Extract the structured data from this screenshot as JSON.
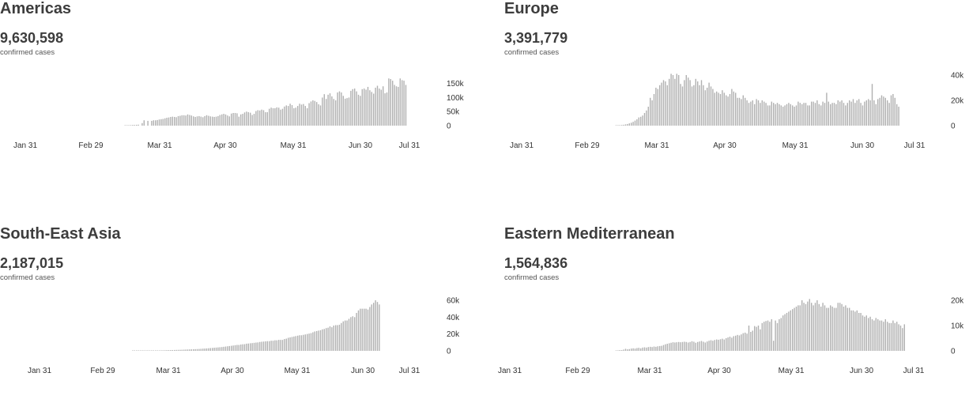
{
  "panels": [
    {
      "title": "Americas",
      "total": "9,630,598",
      "subtitle": "confirmed cases"
    },
    {
      "title": "Europe",
      "total": "3,391,779",
      "subtitle": "confirmed cases"
    },
    {
      "title": "South-East Asia",
      "total": "2,187,015",
      "subtitle": "confirmed cases"
    },
    {
      "title": "Eastern Mediterranean",
      "total": "1,564,836",
      "subtitle": "confirmed cases"
    }
  ],
  "colors": {
    "bar": "#b0b0b0",
    "text": "#3d3d3d"
  },
  "chart_data": [
    {
      "type": "bar",
      "title": "Americas",
      "x_start": "2020-01-11",
      "x_end": "2020-08-14",
      "x_ticks": [
        "Jan 31",
        "Feb 29",
        "Mar 31",
        "Apr 30",
        "May 31",
        "Jun 30",
        "Jul 31"
      ],
      "y_ticks": [
        "0",
        "50k",
        "100k",
        "150k"
      ],
      "y_tick_values": [
        0,
        50000,
        100000,
        150000
      ],
      "ylim": [
        0,
        180000
      ],
      "values": [
        0,
        0,
        0,
        0,
        0,
        0,
        0,
        0,
        0,
        0,
        0,
        0,
        0,
        0,
        0,
        0,
        0,
        0,
        0,
        0,
        0,
        0,
        0,
        0,
        0,
        0,
        0,
        0,
        0,
        0,
        0,
        0,
        0,
        0,
        0,
        0,
        0,
        0,
        0,
        0,
        0,
        0,
        0,
        0,
        0,
        0,
        0,
        0,
        0,
        0,
        0,
        0,
        0,
        0,
        1000,
        1000,
        1500,
        2000,
        2500,
        2500,
        3000,
        3500,
        0,
        9000,
        19000,
        0,
        17000,
        0,
        17000,
        19000,
        19000,
        20000,
        22000,
        23000,
        24000,
        26000,
        28000,
        29000,
        31000,
        32000,
        31000,
        30000,
        34000,
        35000,
        37000,
        37000,
        36000,
        40000,
        38000,
        36000,
        33000,
        31000,
        33000,
        34000,
        32000,
        30000,
        34000,
        37000,
        35000,
        33000,
        32000,
        31000,
        32000,
        34000,
        38000,
        40000,
        42000,
        40000,
        36000,
        33000,
        43000,
        45000,
        45000,
        44000,
        32000,
        40000,
        42000,
        47000,
        50000,
        48000,
        46000,
        38000,
        42000,
        52000,
        55000,
        54000,
        57000,
        55000,
        48000,
        48000,
        60000,
        64000,
        62000,
        62000,
        65000,
        64000,
        57000,
        60000,
        68000,
        72000,
        70000,
        78000,
        73000,
        62000,
        64000,
        70000,
        78000,
        75000,
        77000,
        70000,
        62000,
        80000,
        86000,
        90000,
        88000,
        84000,
        76000,
        72000,
        100000,
        112000,
        95000,
        110000,
        115000,
        104000,
        95000,
        90000,
        118000,
        122000,
        118000,
        106000,
        96000,
        98000,
        100000,
        124000,
        130000,
        132000,
        122000,
        110000,
        106000,
        130000,
        132000,
        128000,
        138000,
        126000,
        120000,
        114000,
        135000,
        142000,
        132000,
        128000,
        140000,
        115000,
        118000,
        168000,
        166000,
        160000,
        145000,
        140000,
        138000,
        168000,
        162000,
        160000,
        145000
      ],
      "xlabel": "",
      "ylabel": ""
    },
    {
      "type": "bar",
      "title": "Europe",
      "x_start": "2020-01-11",
      "x_end": "2020-08-14",
      "x_ticks": [
        "Jan 31",
        "Feb 29",
        "Mar 31",
        "Apr 30",
        "May 31",
        "Jun 30",
        "Jul 31"
      ],
      "y_ticks": [
        "0",
        "20k",
        "40k"
      ],
      "y_tick_values": [
        0,
        20000,
        40000
      ],
      "ylim": [
        0,
        40000
      ],
      "values": [
        0,
        0,
        0,
        0,
        0,
        0,
        0,
        0,
        0,
        0,
        0,
        0,
        0,
        0,
        0,
        0,
        0,
        0,
        0,
        0,
        0,
        0,
        0,
        0,
        0,
        0,
        0,
        0,
        0,
        0,
        0,
        0,
        0,
        0,
        0,
        0,
        0,
        0,
        0,
        0,
        0,
        0,
        0,
        0,
        0,
        0,
        0,
        200,
        300,
        400,
        500,
        700,
        1000,
        1300,
        1800,
        2300,
        3000,
        4000,
        5000,
        6500,
        7000,
        8000,
        10000,
        12000,
        15000,
        22000,
        20000,
        25000,
        30000,
        29000,
        32000,
        34000,
        36000,
        35000,
        32000,
        37000,
        41000,
        40000,
        37000,
        41000,
        40000,
        33000,
        31000,
        36000,
        40000,
        38000,
        36000,
        31000,
        32000,
        37000,
        35000,
        32000,
        36000,
        32000,
        28000,
        30000,
        34000,
        31000,
        29000,
        26000,
        27000,
        26000,
        25000,
        28000,
        26000,
        24000,
        23000,
        25000,
        29000,
        27000,
        26000,
        22000,
        22000,
        21000,
        24000,
        22000,
        20000,
        18000,
        19000,
        20000,
        17000,
        21000,
        20000,
        18000,
        20000,
        19000,
        18000,
        16000,
        16000,
        19000,
        18000,
        17000,
        18000,
        17000,
        16000,
        15000,
        16000,
        17000,
        18000,
        17000,
        16000,
        15000,
        16000,
        19000,
        18000,
        17000,
        18000,
        18000,
        16000,
        16000,
        19000,
        19000,
        18000,
        20000,
        17000,
        16000,
        19000,
        18000,
        26000,
        19000,
        17000,
        18000,
        18000,
        17000,
        20000,
        19000,
        20000,
        18000,
        16000,
        18000,
        20000,
        19000,
        21000,
        18000,
        20000,
        21000,
        18000,
        16000,
        19000,
        20000,
        21000,
        20000,
        33000,
        20000,
        17000,
        21000,
        22000,
        24000,
        23000,
        22000,
        20000,
        18000,
        24000,
        25000,
        22000,
        17000,
        15000
      ]
    },
    {
      "type": "bar",
      "title": "South-East Asia",
      "x_start": "2020-01-11",
      "x_end": "2020-08-14",
      "x_ticks": [
        "Jan 31",
        "Feb 29",
        "Mar 31",
        "Apr 30",
        "May 31",
        "Jun 30",
        "Jul 31"
      ],
      "y_ticks": [
        "0",
        "20k",
        "40k",
        "60k"
      ],
      "y_tick_values": [
        0,
        20000,
        40000,
        60000
      ],
      "ylim": [
        0,
        60000
      ],
      "values": [
        0,
        0,
        0,
        0,
        0,
        0,
        0,
        0,
        0,
        0,
        0,
        0,
        0,
        0,
        0,
        0,
        0,
        0,
        0,
        0,
        0,
        0,
        0,
        0,
        0,
        0,
        0,
        0,
        0,
        0,
        0,
        0,
        0,
        0,
        0,
        0,
        0,
        0,
        0,
        0,
        0,
        0,
        0,
        0,
        0,
        0,
        0,
        0,
        0,
        0,
        0,
        0,
        0,
        0,
        0,
        0,
        0,
        0,
        50,
        60,
        80,
        100,
        120,
        150,
        180,
        200,
        250,
        300,
        350,
        400,
        450,
        500,
        550,
        600,
        650,
        700,
        800,
        850,
        900,
        950,
        1000,
        1100,
        1150,
        1200,
        1300,
        1400,
        1500,
        1600,
        1700,
        1800,
        1900,
        2000,
        2100,
        2200,
        2400,
        2600,
        2700,
        2900,
        3100,
        3300,
        3500,
        3700,
        3900,
        4100,
        4300,
        4500,
        4800,
        5100,
        5400,
        5700,
        6000,
        6300,
        6700,
        7000,
        7000,
        7500,
        7800,
        7900,
        8500,
        8700,
        9000,
        9200,
        9500,
        9800,
        10000,
        10500,
        10800,
        11000,
        11300,
        11500,
        11500,
        12000,
        12000,
        12500,
        12500,
        13000,
        13000,
        13000,
        14000,
        14500,
        15500,
        16000,
        16500,
        17000,
        17500,
        18000,
        18500,
        18500,
        19000,
        19500,
        20000,
        20500,
        21000,
        22000,
        23000,
        23500,
        24000,
        24500,
        25500,
        26000,
        27000,
        27500,
        29000,
        28000,
        30000,
        30500,
        30500,
        31000,
        33000,
        35000,
        36000,
        36000,
        38000,
        40000,
        41000,
        40000,
        45000,
        48000,
        50000,
        50000,
        50000,
        50000,
        49000,
        52000,
        55000,
        57000,
        60000,
        58000,
        55000
      ]
    },
    {
      "type": "bar",
      "title": "Eastern Mediterranean",
      "x_start": "2020-01-11",
      "x_end": "2020-08-14",
      "x_ticks": [
        "Jan 31",
        "Feb 29",
        "Mar 31",
        "Apr 30",
        "May 31",
        "Jun 30",
        "Jul 31"
      ],
      "y_ticks": [
        "0",
        "10k",
        "20k"
      ],
      "y_tick_values": [
        0,
        10000,
        20000
      ],
      "ylim": [
        0,
        20000
      ],
      "values": [
        0,
        0,
        0,
        0,
        0,
        0,
        0,
        0,
        0,
        0,
        0,
        0,
        0,
        0,
        0,
        0,
        0,
        0,
        0,
        0,
        0,
        0,
        0,
        0,
        0,
        0,
        0,
        0,
        0,
        0,
        0,
        0,
        0,
        0,
        0,
        0,
        0,
        0,
        0,
        0,
        0,
        0,
        0,
        0,
        0,
        0,
        0,
        100,
        200,
        300,
        300,
        500,
        800,
        600,
        700,
        900,
        1000,
        900,
        1100,
        1200,
        1000,
        1300,
        1400,
        1300,
        1500,
        1600,
        1500,
        1700,
        1600,
        1800,
        1900,
        2000,
        2300,
        2600,
        2800,
        3000,
        3200,
        3400,
        3300,
        3400,
        3500,
        3400,
        3500,
        3600,
        3500,
        3300,
        3500,
        3800,
        3600,
        3200,
        3500,
        3700,
        3900,
        3600,
        3300,
        3700,
        4000,
        4200,
        4000,
        4300,
        4500,
        4400,
        4600,
        4800,
        4500,
        5000,
        5300,
        5600,
        5200,
        5800,
        6000,
        6300,
        6100,
        6500,
        7000,
        7200,
        6800,
        10000,
        7500,
        8000,
        9800,
        9500,
        10000,
        8500,
        11000,
        11500,
        11800,
        12000,
        11500,
        12500,
        4000,
        12000,
        11000,
        12500,
        13000,
        14000,
        14500,
        15000,
        15500,
        16000,
        16500,
        17000,
        17500,
        18000,
        18000,
        20000,
        19000,
        18500,
        19500,
        20500,
        19000,
        18000,
        19000,
        20000,
        18500,
        17500,
        19000,
        18000,
        17000,
        17000,
        18000,
        17500,
        17000,
        17000,
        19000,
        19000,
        18500,
        17500,
        18000,
        17000,
        17000,
        16000,
        16000,
        15500,
        16000,
        15000,
        15000,
        14000,
        13500,
        14000,
        13000,
        13500,
        12500,
        12000,
        13000,
        12500,
        12000,
        12000,
        11500,
        12500,
        11500,
        11000,
        11000,
        12000,
        11000,
        11500,
        10500,
        10000,
        9000,
        10500
      ]
    }
  ]
}
